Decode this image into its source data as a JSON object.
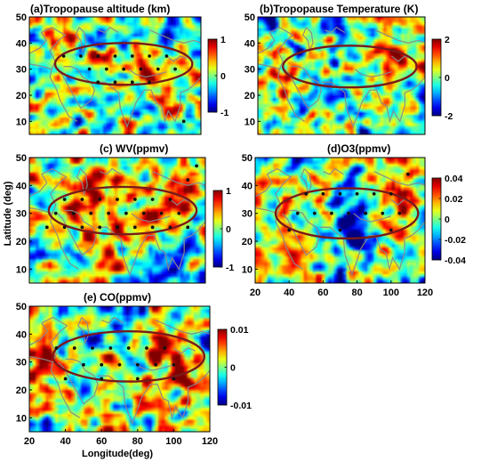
{
  "chart_data": [
    {
      "id": "a",
      "type": "heatmap",
      "title": "(a)Tropopause altitude (km)",
      "xlabel": "",
      "ylabel": "",
      "xlim": [
        20,
        120
      ],
      "ylim": [
        5,
        50
      ],
      "xticks": [],
      "yticks": [
        10,
        20,
        30,
        40,
        50
      ],
      "colorbar": {
        "min": -1,
        "max": 1,
        "ticks": [
          1,
          0,
          -1
        ],
        "colormap": "jet"
      },
      "field_seed": 11,
      "field_bias": [
        {
          "lon": 40,
          "lat": 43,
          "value": 0.7,
          "radius": 10
        },
        {
          "lon": 85,
          "lat": 33,
          "value": 0.5,
          "radius": 12
        },
        {
          "lon": 100,
          "lat": 45,
          "value": -0.6,
          "radius": 8
        }
      ],
      "boundary": {
        "center": [
          75,
          32
        ],
        "semi_axes": [
          40,
          8
        ]
      },
      "significance_dots": [
        {
          "lon": 40,
          "lat": 35
        },
        {
          "lon": 50,
          "lat": 35
        },
        {
          "lon": 60,
          "lat": 35
        },
        {
          "lon": 70,
          "lat": 35
        },
        {
          "lon": 80,
          "lat": 35
        },
        {
          "lon": 90,
          "lat": 35
        },
        {
          "lon": 100,
          "lat": 35
        },
        {
          "lon": 55,
          "lat": 30
        },
        {
          "lon": 65,
          "lat": 30
        },
        {
          "lon": 75,
          "lat": 30
        },
        {
          "lon": 85,
          "lat": 30
        },
        {
          "lon": 95,
          "lat": 30
        },
        {
          "lon": 105,
          "lat": 30
        },
        {
          "lon": 60,
          "lat": 25
        },
        {
          "lon": 70,
          "lat": 25
        },
        {
          "lon": 80,
          "lat": 25
        },
        {
          "lon": 90,
          "lat": 25
        },
        {
          "lon": 110,
          "lat": 10
        }
      ]
    },
    {
      "id": "b",
      "type": "heatmap",
      "title": "(b)Tropopause Temperature (K)",
      "xlabel": "",
      "ylabel": "",
      "xlim": [
        20,
        120
      ],
      "ylim": [
        5,
        50
      ],
      "xticks": [],
      "yticks": [
        10,
        20,
        30,
        40,
        50
      ],
      "colorbar": {
        "min": -2,
        "max": 2,
        "ticks": [
          2,
          0,
          -2
        ],
        "colormap": "jet"
      },
      "field_seed": 23,
      "field_bias": [
        {
          "lon": 100,
          "lat": 35,
          "value": 1.2,
          "radius": 12
        },
        {
          "lon": 35,
          "lat": 22,
          "value": 0.9,
          "radius": 10
        },
        {
          "lon": 70,
          "lat": 45,
          "value": -1.0,
          "radius": 10
        }
      ],
      "boundary": {
        "center": [
          75,
          31
        ],
        "semi_axes": [
          40,
          8
        ]
      },
      "significance_dots": []
    },
    {
      "id": "c",
      "type": "heatmap",
      "title": "(c) WV(ppmv)",
      "xlabel": "",
      "ylabel": "Latitude (deg)",
      "xlim": [
        20,
        120
      ],
      "ylim": [
        5,
        50
      ],
      "xticks": [],
      "yticks": [
        10,
        20,
        30,
        40,
        50
      ],
      "colorbar": {
        "min": -1,
        "max": 1,
        "ticks": [
          1,
          0,
          -1
        ],
        "colormap": "jet"
      },
      "field_seed": 37,
      "field_bias": [
        {
          "lon": 60,
          "lat": 31,
          "value": 0.7,
          "radius": 18
        },
        {
          "lon": 90,
          "lat": 30,
          "value": 0.5,
          "radius": 12
        },
        {
          "lon": 110,
          "lat": 38,
          "value": 0.5,
          "radius": 8
        },
        {
          "lon": 100,
          "lat": 12,
          "value": -0.5,
          "radius": 12
        }
      ],
      "boundary": {
        "center": [
          73,
          31
        ],
        "semi_axes": [
          42,
          8.5
        ]
      },
      "significance_dots": [
        {
          "lon": 40,
          "lat": 35
        },
        {
          "lon": 50,
          "lat": 35
        },
        {
          "lon": 60,
          "lat": 35
        },
        {
          "lon": 70,
          "lat": 35
        },
        {
          "lon": 80,
          "lat": 35
        },
        {
          "lon": 90,
          "lat": 35
        },
        {
          "lon": 100,
          "lat": 35
        },
        {
          "lon": 35,
          "lat": 30
        },
        {
          "lon": 45,
          "lat": 30
        },
        {
          "lon": 55,
          "lat": 30
        },
        {
          "lon": 65,
          "lat": 30
        },
        {
          "lon": 75,
          "lat": 30
        },
        {
          "lon": 85,
          "lat": 30
        },
        {
          "lon": 95,
          "lat": 30
        },
        {
          "lon": 105,
          "lat": 30
        },
        {
          "lon": 30,
          "lat": 25
        },
        {
          "lon": 40,
          "lat": 25
        },
        {
          "lon": 50,
          "lat": 25
        },
        {
          "lon": 60,
          "lat": 25
        },
        {
          "lon": 70,
          "lat": 25
        },
        {
          "lon": 80,
          "lat": 25
        },
        {
          "lon": 90,
          "lat": 25
        },
        {
          "lon": 100,
          "lat": 25
        },
        {
          "lon": 110,
          "lat": 25
        },
        {
          "lon": 110,
          "lat": 42
        },
        {
          "lon": 115,
          "lat": 47
        }
      ]
    },
    {
      "id": "d",
      "type": "heatmap",
      "title": "(d)O3(ppmv)",
      "xlabel": "",
      "ylabel": "",
      "xlim": [
        20,
        120
      ],
      "ylim": [
        5,
        50
      ],
      "xticks": [
        20,
        40,
        60,
        80,
        100,
        120
      ],
      "yticks": [
        10,
        20,
        30,
        40,
        50
      ],
      "colorbar": {
        "min": -0.04,
        "max": 0.04,
        "ticks": [
          0.04,
          0.02,
          0,
          -0.02,
          -0.04
        ],
        "colormap": "jet"
      },
      "field_seed": 51,
      "field_bias": [
        {
          "lon": 95,
          "lat": 45,
          "value": 0.04,
          "radius": 16
        },
        {
          "lon": 80,
          "lat": 30,
          "value": -0.03,
          "radius": 16
        },
        {
          "lon": 45,
          "lat": 15,
          "value": 0.02,
          "radius": 10
        },
        {
          "lon": 60,
          "lat": 38,
          "value": 0.015,
          "radius": 8
        }
      ],
      "boundary": {
        "center": [
          74,
          30
        ],
        "semi_axes": [
          42,
          9
        ]
      },
      "significance_dots": [
        {
          "lon": 50,
          "lat": 37
        },
        {
          "lon": 60,
          "lat": 37
        },
        {
          "lon": 70,
          "lat": 37
        },
        {
          "lon": 80,
          "lat": 37
        },
        {
          "lon": 90,
          "lat": 37
        },
        {
          "lon": 100,
          "lat": 37
        },
        {
          "lon": 45,
          "lat": 30
        },
        {
          "lon": 55,
          "lat": 30
        },
        {
          "lon": 65,
          "lat": 30
        },
        {
          "lon": 75,
          "lat": 30
        },
        {
          "lon": 85,
          "lat": 30
        },
        {
          "lon": 95,
          "lat": 30
        },
        {
          "lon": 105,
          "lat": 30
        },
        {
          "lon": 40,
          "lat": 24
        },
        {
          "lon": 70,
          "lat": 24
        },
        {
          "lon": 100,
          "lat": 24
        },
        {
          "lon": 110,
          "lat": 44
        }
      ]
    },
    {
      "id": "e",
      "type": "heatmap",
      "title": "(e) CO(ppmv)",
      "xlabel": "Longitude(deg)",
      "ylabel": "",
      "xlim": [
        20,
        120
      ],
      "ylim": [
        5,
        50
      ],
      "xticks": [
        20,
        40,
        60,
        80,
        100,
        120
      ],
      "yticks": [
        10,
        20,
        30,
        40,
        50
      ],
      "colorbar": {
        "min": -0.01,
        "max": 0.01,
        "ticks": [
          0.01,
          0,
          -0.01
        ],
        "colormap": "jet"
      },
      "field_seed": 67,
      "field_bias": [
        {
          "lon": 25,
          "lat": 30,
          "value": 0.009,
          "radius": 10
        },
        {
          "lon": 95,
          "lat": 30,
          "value": 0.008,
          "radius": 14
        },
        {
          "lon": 70,
          "lat": 48,
          "value": -0.008,
          "radius": 10
        },
        {
          "lon": 85,
          "lat": 15,
          "value": 0.004,
          "radius": 8
        }
      ],
      "boundary": {
        "center": [
          75,
          32
        ],
        "semi_axes": [
          42,
          9
        ]
      },
      "significance_dots": [
        {
          "lon": 35,
          "lat": 35
        },
        {
          "lon": 45,
          "lat": 35
        },
        {
          "lon": 55,
          "lat": 35
        },
        {
          "lon": 65,
          "lat": 35
        },
        {
          "lon": 75,
          "lat": 35
        },
        {
          "lon": 85,
          "lat": 35
        },
        {
          "lon": 95,
          "lat": 35
        },
        {
          "lon": 50,
          "lat": 29
        },
        {
          "lon": 60,
          "lat": 29
        },
        {
          "lon": 70,
          "lat": 29
        },
        {
          "lon": 80,
          "lat": 29
        },
        {
          "lon": 90,
          "lat": 29
        },
        {
          "lon": 100,
          "lat": 29
        },
        {
          "lon": 40,
          "lat": 24
        },
        {
          "lon": 60,
          "lat": 24
        },
        {
          "lon": 80,
          "lat": 24
        },
        {
          "lon": 100,
          "lat": 24
        }
      ]
    }
  ],
  "coastline_lonlat": [
    [
      [
        20,
        36
      ],
      [
        26,
        38
      ],
      [
        30,
        41
      ],
      [
        27,
        44
      ],
      [
        33,
        46
      ],
      [
        41,
        43
      ],
      [
        37,
        41
      ],
      [
        32,
        37
      ],
      [
        35,
        33
      ],
      [
        33,
        30
      ],
      [
        28,
        31
      ],
      [
        20,
        32
      ]
    ],
    [
      [
        33,
        30
      ],
      [
        32,
        27
      ],
      [
        36,
        22
      ],
      [
        38,
        18
      ],
      [
        43,
        12
      ],
      [
        48,
        10
      ]
    ],
    [
      [
        36,
        30
      ],
      [
        39,
        28
      ],
      [
        44,
        22
      ],
      [
        50,
        15
      ],
      [
        56,
        18
      ],
      [
        58,
        22
      ],
      [
        56,
        25
      ],
      [
        51,
        27
      ],
      [
        48,
        30
      ],
      [
        44,
        31
      ],
      [
        40,
        31
      ]
    ],
    [
      [
        58,
        25
      ],
      [
        64,
        25
      ],
      [
        68,
        23
      ],
      [
        72,
        21
      ],
      [
        73,
        15
      ],
      [
        77,
        8
      ],
      [
        80,
        13
      ],
      [
        82,
        17
      ],
      [
        87,
        22
      ],
      [
        91,
        22
      ],
      [
        94,
        17
      ],
      [
        97,
        16
      ],
      [
        99,
        10
      ],
      [
        101,
        14
      ],
      [
        105,
        10
      ],
      [
        108,
        16
      ],
      [
        108,
        21
      ],
      [
        112,
        22
      ],
      [
        116,
        24
      ],
      [
        120,
        27
      ]
    ],
    [
      [
        49,
        46
      ],
      [
        52,
        44
      ],
      [
        53,
        40
      ],
      [
        51,
        37
      ],
      [
        50,
        41
      ],
      [
        47,
        43
      ],
      [
        49,
        46
      ]
    ],
    [
      [
        60,
        45
      ],
      [
        64,
        44
      ],
      [
        67,
        46
      ],
      [
        72,
        44
      ]
    ],
    [
      [
        78,
        30
      ],
      [
        82,
        28
      ],
      [
        88,
        27
      ],
      [
        95,
        28
      ],
      [
        100,
        29
      ]
    ],
    [
      [
        90,
        45
      ],
      [
        97,
        43
      ],
      [
        104,
        41
      ],
      [
        110,
        40
      ],
      [
        116,
        41
      ],
      [
        120,
        40
      ]
    ],
    [
      [
        100,
        35
      ],
      [
        104,
        33
      ],
      [
        108,
        35
      ],
      [
        112,
        34
      ]
    ]
  ]
}
